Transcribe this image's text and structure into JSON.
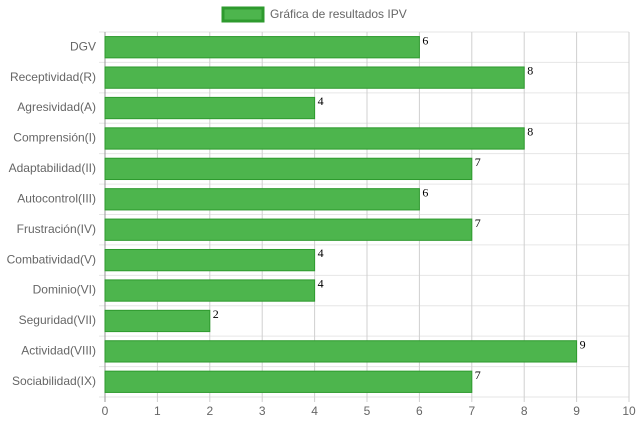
{
  "chart_data": {
    "type": "bar",
    "orientation": "horizontal",
    "categories": [
      "DGV",
      "Receptividad(R)",
      "Agresividad(A)",
      "Comprensión(I)",
      "Adaptabilidad(II)",
      "Autocontrol(III)",
      "Frustración(IV)",
      "Combatividad(V)",
      "Dominio(VI)",
      "Seguridad(VII)",
      "Actividad(VIII)",
      "Sociabilidad(IX)"
    ],
    "series": [
      {
        "name": "Gráfica de resultados IPV",
        "color": "#4db54d",
        "border_color": "#2e9a2e",
        "values": [
          6,
          8,
          4,
          8,
          7,
          6,
          7,
          4,
          4,
          2,
          9,
          7
        ]
      }
    ],
    "xlim": [
      0,
      10
    ],
    "xticks": [
      0,
      1,
      2,
      3,
      4,
      5,
      6,
      7,
      8,
      9,
      10
    ],
    "grid": true,
    "legend": "top"
  }
}
